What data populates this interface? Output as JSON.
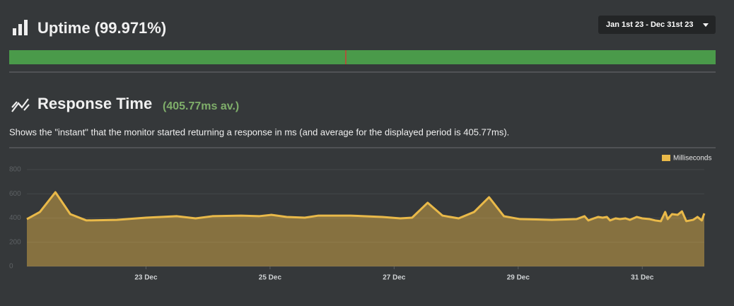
{
  "date_range": "Jan 1st 23 - Dec 31st 23",
  "uptime": {
    "title": "Uptime (99.971%)"
  },
  "response": {
    "title": "Response Time",
    "average": "(405.77ms av.)",
    "description": "Shows the \"instant\" that the monitor started returning a response in ms (and average for the displayed period is 405.77ms)."
  },
  "chart_data": {
    "type": "area",
    "x": [
      21.08,
      21.29,
      21.54,
      21.78,
      22.04,
      22.53,
      23.0,
      23.5,
      23.8,
      24.07,
      24.53,
      24.82,
      25.02,
      25.27,
      25.56,
      25.78,
      26.3,
      26.81,
      27.1,
      27.29,
      27.54,
      27.78,
      28.04,
      28.29,
      28.53,
      28.77,
      29.03,
      29.54,
      29.94,
      30.07,
      30.13,
      30.22,
      30.29,
      30.36,
      30.43,
      30.48,
      30.57,
      30.64,
      30.73,
      30.8,
      30.91,
      31.0,
      31.12,
      31.21,
      31.3,
      31.37,
      31.41,
      31.48,
      31.57,
      31.64,
      31.71,
      31.82,
      31.89,
      31.96,
      32.0
    ],
    "series": [
      {
        "name": "Milliseconds",
        "color": "#e9b949",
        "values": [
          391,
          450,
          613,
          432,
          380,
          385,
          403,
          415,
          397,
          415,
          420,
          415,
          426,
          409,
          403,
          420,
          420,
          409,
          397,
          403,
          526,
          420,
          397,
          450,
          572,
          415,
          391,
          385,
          391,
          415,
          380,
          397,
          409,
          403,
          409,
          380,
          397,
          391,
          397,
          385,
          409,
          397,
          391,
          380,
          374,
          450,
          391,
          432,
          426,
          455,
          374,
          385,
          409,
          380,
          438
        ]
      }
    ],
    "xlim": [
      21.08,
      32.0
    ],
    "xticks": [
      {
        "value": 23,
        "label": "23 Dec"
      },
      {
        "value": 25,
        "label": "25 Dec"
      },
      {
        "value": 27,
        "label": "27 Dec"
      },
      {
        "value": 29,
        "label": "29 Dec"
      },
      {
        "value": 31,
        "label": "31 Dec"
      }
    ],
    "ylim": [
      0,
      800
    ],
    "yticks": [
      0,
      200,
      400,
      600,
      800
    ],
    "grid": true
  }
}
